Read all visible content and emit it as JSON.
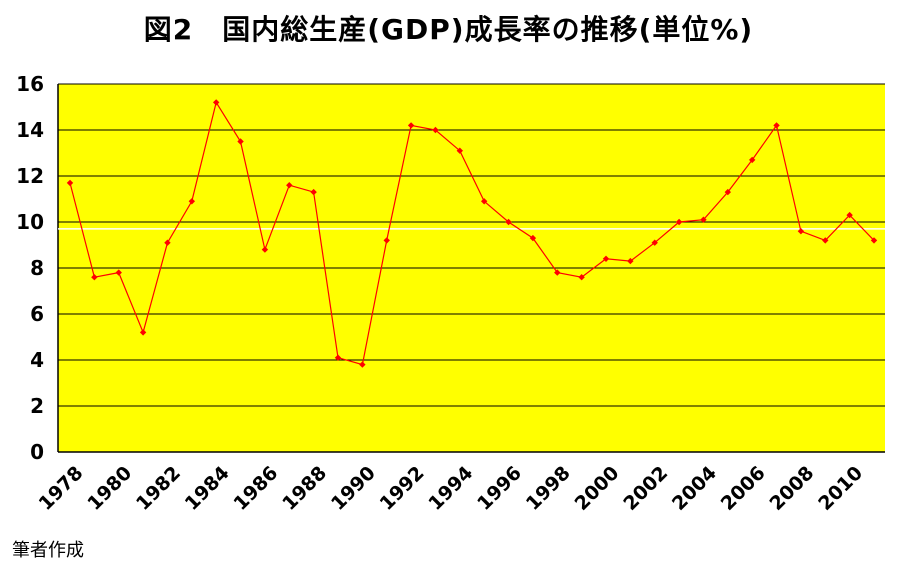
{
  "title": "図2　国内総生産(GDP)成長率の推移(単位%)",
  "source_note": "筆者作成",
  "colors": {
    "plot_background": "#ffff00",
    "line": "#ff0000",
    "marker": "#ff0000",
    "grid": "#000000",
    "reference_line": "#ffffff"
  },
  "chart_data": {
    "type": "line",
    "title": "図2　国内総生産(GDP)成長率の推移(単位%)",
    "xlabel": "",
    "ylabel": "",
    "ylim": [
      0,
      16
    ],
    "yticks": [
      0,
      2,
      4,
      6,
      8,
      10,
      12,
      14,
      16
    ],
    "x_tick_labels": [
      "1978",
      "1980",
      "1982",
      "1984",
      "1986",
      "1988",
      "1990",
      "1992",
      "1994",
      "1996",
      "1998",
      "2000",
      "2002",
      "2004",
      "2006",
      "2008",
      "2010"
    ],
    "grid": true,
    "legend": "none",
    "reference_line_value": 9.7,
    "series": [
      {
        "x": [
          1978,
          1979,
          1980,
          1981,
          1982,
          1983,
          1984,
          1985,
          1986,
          1987,
          1988,
          1989,
          1990,
          1991,
          1992,
          1993,
          1994,
          1995,
          1996,
          1997,
          1998,
          1999,
          2000,
          2001,
          2002,
          2003,
          2004,
          2005,
          2006,
          2007,
          2008,
          2009,
          2010,
          2011
        ],
        "values": [
          11.7,
          7.6,
          7.8,
          5.2,
          9.1,
          10.9,
          15.2,
          13.5,
          8.8,
          11.6,
          11.3,
          4.1,
          3.8,
          9.2,
          14.2,
          14.0,
          13.1,
          10.9,
          10.0,
          9.3,
          7.8,
          7.6,
          8.4,
          8.3,
          9.1,
          10.0,
          10.1,
          11.3,
          12.7,
          14.2,
          9.6,
          9.2,
          10.3,
          9.2
        ]
      }
    ]
  }
}
